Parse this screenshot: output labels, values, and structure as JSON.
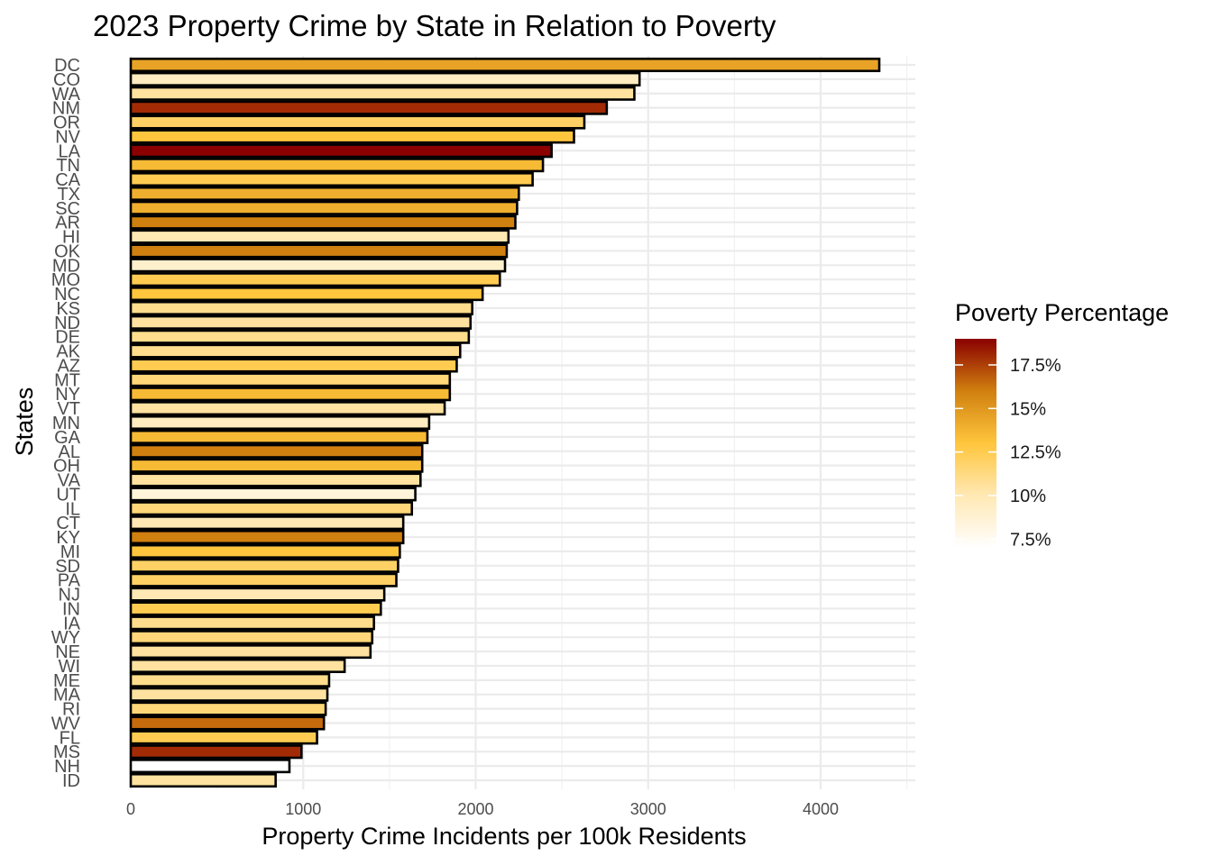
{
  "chart_data": {
    "type": "bar",
    "orientation": "horizontal",
    "title": "2023 Property Crime by State in Relation to Poverty",
    "xlabel": "Property Crime Incidents per 100k Residents",
    "ylabel": "States",
    "xlim": [
      0,
      4550
    ],
    "x_ticks": [
      0,
      1000,
      2000,
      3000,
      4000
    ],
    "grid": true,
    "legend": {
      "title": "Poverty Percentage",
      "placement": "right",
      "range": [
        7,
        19
      ],
      "ticks": [
        {
          "value": 7.5,
          "label": "7.5%"
        },
        {
          "value": 10,
          "label": "10%"
        },
        {
          "value": 12.5,
          "label": "12.5%"
        },
        {
          "value": 15,
          "label": "15%"
        },
        {
          "value": 17.5,
          "label": "17.5%"
        }
      ],
      "gradient": [
        {
          "value": 7,
          "color": "#ffffff"
        },
        {
          "value": 10,
          "color": "#ffe8b3"
        },
        {
          "value": 13,
          "color": "#ffc63d"
        },
        {
          "value": 16,
          "color": "#d0800f"
        },
        {
          "value": 19,
          "color": "#8b0000"
        }
      ]
    },
    "categories": [
      "DC",
      "CO",
      "WA",
      "NM",
      "OR",
      "NV",
      "LA",
      "TN",
      "CA",
      "TX",
      "SC",
      "AR",
      "HI",
      "OK",
      "MD",
      "MO",
      "NC",
      "KS",
      "ND",
      "DE",
      "AK",
      "AZ",
      "MT",
      "NY",
      "VT",
      "MN",
      "GA",
      "AL",
      "OH",
      "VA",
      "UT",
      "IL",
      "CT",
      "KY",
      "MI",
      "SD",
      "PA",
      "NJ",
      "IN",
      "IA",
      "WY",
      "NE",
      "WI",
      "ME",
      "MA",
      "RI",
      "WV",
      "FL",
      "MS",
      "NH",
      "ID"
    ],
    "values": [
      4340,
      2950,
      2920,
      2760,
      2630,
      2570,
      2440,
      2390,
      2330,
      2250,
      2240,
      2230,
      2190,
      2180,
      2170,
      2140,
      2040,
      1980,
      1970,
      1960,
      1910,
      1890,
      1850,
      1850,
      1820,
      1730,
      1720,
      1690,
      1690,
      1680,
      1650,
      1630,
      1580,
      1580,
      1560,
      1550,
      1540,
      1470,
      1450,
      1410,
      1400,
      1390,
      1240,
      1150,
      1140,
      1130,
      1120,
      1080,
      990,
      920,
      840
    ],
    "poverty": [
      14.5,
      9.5,
      10.5,
      18.0,
      12.0,
      13.0,
      19.0,
      13.5,
      12.5,
      14.0,
      14.0,
      16.0,
      10.0,
      16.0,
      9.0,
      12.5,
      13.0,
      11.0,
      10.5,
      11.0,
      11.0,
      12.5,
      11.5,
      13.5,
      10.5,
      9.5,
      13.5,
      16.0,
      13.5,
      10.5,
      8.5,
      11.5,
      10.0,
      16.0,
      13.0,
      12.0,
      12.0,
      10.0,
      12.5,
      11.0,
      11.5,
      10.5,
      10.5,
      11.0,
      10.5,
      11.5,
      16.5,
      12.5,
      18.0,
      7.0,
      10.5
    ]
  }
}
